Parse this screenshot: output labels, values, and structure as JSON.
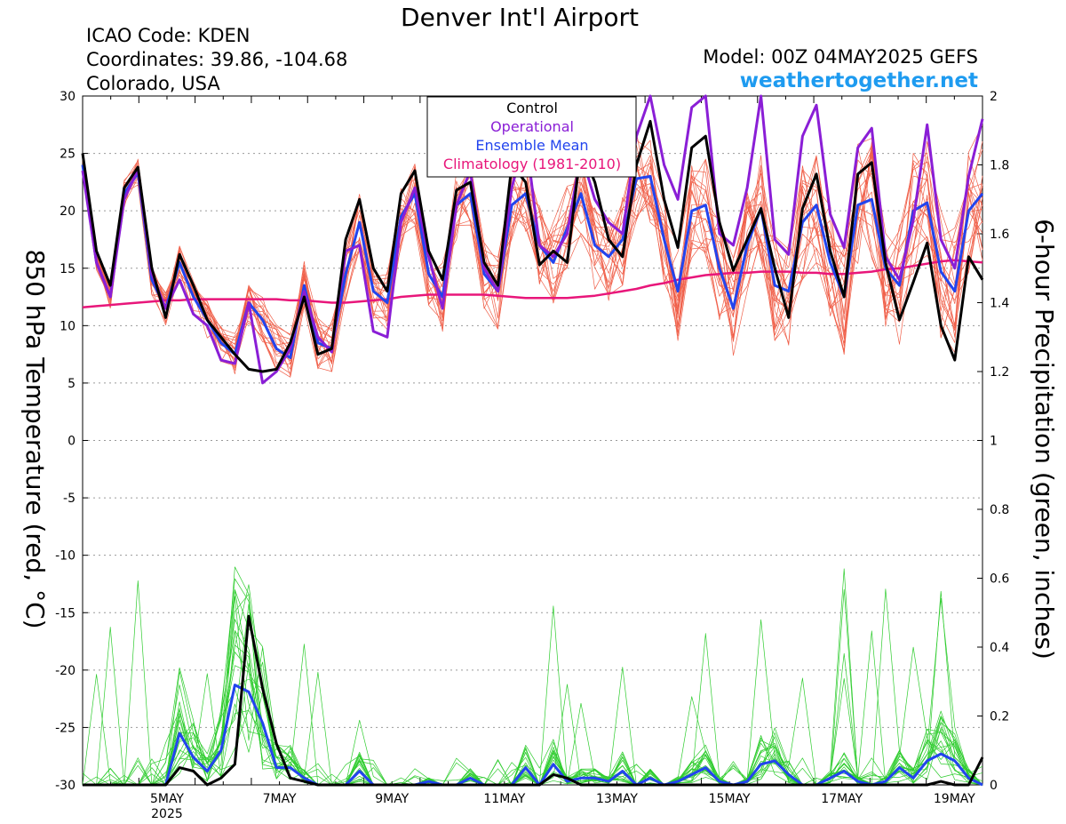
{
  "header": {
    "title": "Denver Int'l Airport",
    "icao": "ICAO Code: KDEN",
    "coords": "Coordinates: 39.86, -104.68",
    "region": "Colorado, USA",
    "model": "Model: 00Z 04MAY2025 GEFS",
    "site": "weathertogether.net",
    "site_color": "#1e9bf0"
  },
  "colors": {
    "ensemble_temp": "#f0604a",
    "ensemble_precip": "#2ecc2e",
    "control": "#000000",
    "operational": "#8a1ed6",
    "ensemble_mean": "#2244ee",
    "climatology": "#e8167a"
  },
  "chart_data": {
    "type": "line",
    "title": "Denver Int'l Airport",
    "ylabel_left": "850 hPa Temperature (red, °C)",
    "ylabel_right": "6-hour Precipitation (green, inches)",
    "ylim_left": [
      -30,
      30
    ],
    "ylim_right": [
      0,
      2
    ],
    "yticks_left": [
      "30",
      "25",
      "20",
      "15",
      "10",
      "5",
      "0",
      "-5",
      "-10",
      "-15",
      "-20",
      "-25",
      "-30"
    ],
    "yticks_right": [
      "2",
      "1.8",
      "1.6",
      "1.4",
      "1.2",
      "1",
      "0.8",
      "0.6",
      "0.4",
      "0.2",
      "0"
    ],
    "xticks": [
      {
        "label": "5MAY",
        "sub": "2025",
        "day": 5
      },
      {
        "label": "7MAY",
        "sub": "",
        "day": 7
      },
      {
        "label": "9MAY",
        "sub": "",
        "day": 9
      },
      {
        "label": "11MAY",
        "sub": "",
        "day": 11
      },
      {
        "label": "13MAY",
        "sub": "",
        "day": 13
      },
      {
        "label": "15MAY",
        "sub": "",
        "day": 15
      },
      {
        "label": "17MAY",
        "sub": "",
        "day": 17
      },
      {
        "label": "19MAY",
        "sub": "",
        "day": 19
      }
    ],
    "x_domain": {
      "start": "2025-05-04T00Z",
      "end": "2025-05-20T00Z",
      "step_hours": 6
    },
    "grid": true,
    "legend": {
      "placement": "top-center",
      "entries": [
        {
          "label": "Control",
          "color": "#000000"
        },
        {
          "label": "Operational",
          "color": "#8a1ed6"
        },
        {
          "label": "Ensemble Mean",
          "color": "#2244ee"
        },
        {
          "label": "Climatology (1981-2010)",
          "color": "#e8167a"
        }
      ]
    },
    "temperature": {
      "control": [
        25,
        16.5,
        13.5,
        22,
        23.8,
        15,
        10.7,
        16.2,
        13.5,
        10.5,
        9,
        7.5,
        6.2,
        6,
        6.2,
        8.5,
        12.5,
        7.5,
        8,
        17.5,
        21,
        15,
        13,
        21.5,
        23.5,
        16.5,
        14,
        21.8,
        22.5,
        15.5,
        13.5,
        24,
        22.5,
        15.3,
        16.5,
        15.5,
        25.5,
        22.5,
        17.5,
        16,
        24,
        27.8,
        21,
        16.8,
        25.5,
        26.5,
        19,
        14.8,
        17.5,
        20.2,
        15,
        10.7,
        20.2,
        23.2,
        16.5,
        12.5,
        23.2,
        24.2,
        15.5,
        10.5,
        13.8,
        17.2,
        10,
        7,
        16,
        14
      ],
      "operational": [
        23.5,
        15.5,
        12.5,
        21,
        23.6,
        14.5,
        11.5,
        14,
        11,
        10,
        7,
        6.7,
        12,
        5,
        6,
        8,
        13,
        9,
        7.7,
        16.5,
        17,
        9.5,
        9,
        19,
        22,
        16,
        11.5,
        20.5,
        23.5,
        15,
        13,
        22,
        26.5,
        17,
        16,
        18,
        25,
        21,
        19,
        18,
        26.5,
        30,
        24,
        21,
        29,
        30.5,
        18,
        17,
        22,
        30.5,
        17.5,
        16.2,
        26.5,
        29.2,
        19.7,
        16.8,
        25.5,
        27.2,
        16,
        14,
        19.2,
        27.5,
        17.5,
        15,
        23,
        28
      ],
      "ensemble_mean": [
        24,
        15.5,
        12.5,
        21.5,
        23.3,
        14,
        11.5,
        15.5,
        12.5,
        10.5,
        8.5,
        7.5,
        12,
        10.5,
        8,
        7.2,
        13.5,
        8.5,
        8,
        14.5,
        19,
        13,
        12,
        19.5,
        21.5,
        14.5,
        12.5,
        20.5,
        21.5,
        14.5,
        13,
        20.5,
        21.5,
        17,
        15.5,
        18.5,
        21.5,
        17,
        16,
        17.5,
        22.8,
        23,
        17.5,
        13,
        20,
        20.5,
        15,
        11.5,
        17,
        20.2,
        13.5,
        13,
        19,
        20.5,
        15.5,
        12.5,
        20.5,
        21,
        15,
        13.5,
        20,
        20.7,
        14.7,
        13,
        20,
        21.5
      ],
      "climatology": [
        11.6,
        11.7,
        11.8,
        11.9,
        12,
        12.1,
        12.2,
        12.2,
        12.3,
        12.3,
        12.3,
        12.3,
        12.3,
        12.3,
        12.3,
        12.2,
        12.2,
        12.1,
        12,
        12,
        12.1,
        12.2,
        12.3,
        12.5,
        12.6,
        12.7,
        12.7,
        12.7,
        12.7,
        12.7,
        12.6,
        12.5,
        12.4,
        12.4,
        12.4,
        12.4,
        12.5,
        12.6,
        12.8,
        13,
        13.2,
        13.5,
        13.7,
        14,
        14.2,
        14.4,
        14.5,
        14.6,
        14.6,
        14.7,
        14.7,
        14.7,
        14.6,
        14.6,
        14.5,
        14.5,
        14.6,
        14.7,
        14.9,
        15,
        15.2,
        15.4,
        15.6,
        15.7,
        15.6,
        15.5
      ]
    },
    "precipitation": {
      "control": [
        0,
        0,
        0,
        0,
        0,
        0,
        0,
        0.05,
        0.04,
        0,
        0.02,
        0.06,
        0.49,
        0.28,
        0.12,
        0.02,
        0.01,
        0,
        0,
        0,
        0,
        0,
        0,
        0,
        0,
        0,
        0,
        0,
        0,
        0,
        0,
        0,
        0,
        0,
        0.03,
        0.02,
        0,
        0,
        0,
        0,
        0,
        0,
        0,
        0,
        0,
        0,
        0,
        0,
        0,
        0,
        0,
        0,
        0,
        0,
        0,
        0,
        0,
        0,
        0,
        0,
        0,
        0,
        0.01,
        0,
        0,
        0.08
      ],
      "ensemble_mean": [
        0,
        0,
        0,
        0,
        0,
        0,
        0,
        0.15,
        0.08,
        0.04,
        0.1,
        0.29,
        0.27,
        0.18,
        0.05,
        0.05,
        0.02,
        0,
        0,
        0,
        0.04,
        0,
        0,
        0,
        0,
        0.01,
        0,
        0,
        0.02,
        0,
        0,
        0,
        0.05,
        0,
        0.06,
        0.01,
        0.02,
        0.02,
        0.01,
        0.04,
        0,
        0.02,
        0,
        0.01,
        0.03,
        0.05,
        0.01,
        0,
        0.01,
        0.06,
        0.07,
        0.03,
        0,
        0,
        0.02,
        0.04,
        0.01,
        0,
        0.01,
        0.05,
        0.02,
        0.07,
        0.09,
        0.07,
        0.02,
        0
      ]
    }
  }
}
